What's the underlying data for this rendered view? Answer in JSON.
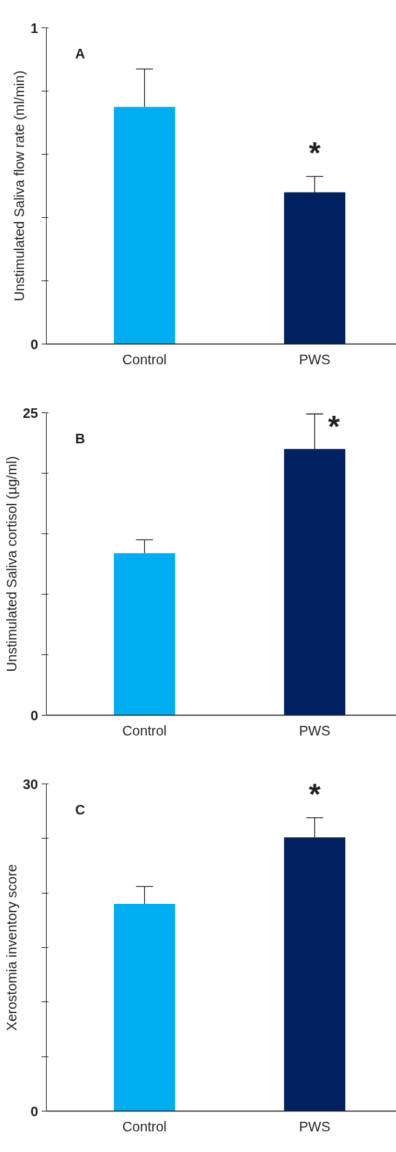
{
  "chart_data": [
    {
      "type": "bar",
      "title": "A",
      "ylabel": "Unstimulated Saliva flow rate (ml/min)",
      "categories": [
        "Control",
        "PWS"
      ],
      "values": [
        0.75,
        0.48
      ],
      "colors": [
        "#00aeef",
        "#00205f"
      ],
      "errors": [
        [
          0.75,
          0.87
        ],
        [
          0.48,
          0.53
        ]
      ],
      "ylim": [
        0,
        1
      ],
      "yticks": [
        0,
        {
          "value": 0.2,
          "label": null
        },
        {
          "value": 0.4,
          "label": null
        },
        {
          "value": 0.6,
          "label": null
        },
        {
          "value": 0.8,
          "label": null
        },
        1
      ],
      "annotations": [
        "*"
      ]
    },
    {
      "type": "bar",
      "title": "B",
      "ylabel": "Unstimulated Saliva cortisol (µg/ml)",
      "categories": [
        "Control",
        "PWS"
      ],
      "values": [
        13.4,
        22.0
      ],
      "colors": [
        "#00aeef",
        "#00205f"
      ],
      "errors": [
        [
          13.4,
          14.5
        ],
        [
          22.0,
          24.9
        ]
      ],
      "ylim": [
        0,
        25
      ],
      "yticks": [
        0,
        {
          "value": 5,
          "label": null
        },
        {
          "value": 10,
          "label": null
        },
        {
          "value": 15,
          "label": null
        },
        {
          "value": 20,
          "label": null
        },
        25
      ],
      "annotations": [
        "*"
      ]
    },
    {
      "type": "bar",
      "title": "C",
      "ylabel": "Xerostomia inventory score",
      "categories": [
        "Control",
        "PWS"
      ],
      "values": [
        19.0,
        25.1
      ],
      "colors": [
        "#00aeef",
        "#00205f"
      ],
      "errors": [
        [
          19.0,
          20.6
        ],
        [
          25.1,
          26.9
        ]
      ],
      "ylim": [
        0,
        30
      ],
      "yticks": [
        0,
        {
          "value": 5,
          "label": null
        },
        {
          "value": 10,
          "label": null
        },
        {
          "value": 15,
          "label": null
        },
        {
          "value": 20,
          "label": null
        },
        {
          "value": 25,
          "label": null
        },
        30
      ],
      "annotations": [
        "*"
      ]
    }
  ]
}
